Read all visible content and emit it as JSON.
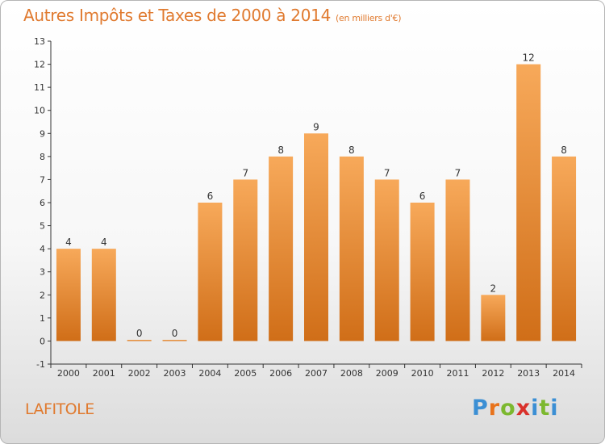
{
  "header": {
    "title": "Autres Impôts et Taxes de 2000 à 2014",
    "unit": "(en milliers d'€)"
  },
  "footer": {
    "location": "LAFITOLE",
    "brand": {
      "letters": [
        "P",
        "r",
        "o",
        "x",
        "i",
        "t",
        "i"
      ],
      "colors": [
        "#3b8fd4",
        "#e8731c",
        "#7cb82f",
        "#d9312b",
        "#3b8fd4",
        "#7cb82f",
        "#3b8fd4"
      ]
    }
  },
  "colors": {
    "accent": "#e07a2f",
    "bar_light": "#f7a95a",
    "bar_dark": "#d06e18",
    "axis": "#333333"
  },
  "chart_data": {
    "type": "bar",
    "title": "Autres Impôts et Taxes de 2000 à 2014",
    "subtitle": "(en milliers d'€)",
    "categories": [
      "2000",
      "2001",
      "2002",
      "2003",
      "2004",
      "2005",
      "2006",
      "2007",
      "2008",
      "2009",
      "2010",
      "2011",
      "2012",
      "2013",
      "2014"
    ],
    "values": [
      4,
      4,
      0,
      0,
      6,
      7,
      8,
      9,
      8,
      7,
      6,
      7,
      2,
      12,
      8
    ],
    "ylim": [
      -1,
      13
    ],
    "yticks": [
      -1,
      0,
      1,
      2,
      3,
      4,
      5,
      6,
      7,
      8,
      9,
      10,
      11,
      12,
      13
    ],
    "xlabel": "",
    "ylabel": "",
    "data_labels": true,
    "grid": false,
    "legend": "none"
  }
}
